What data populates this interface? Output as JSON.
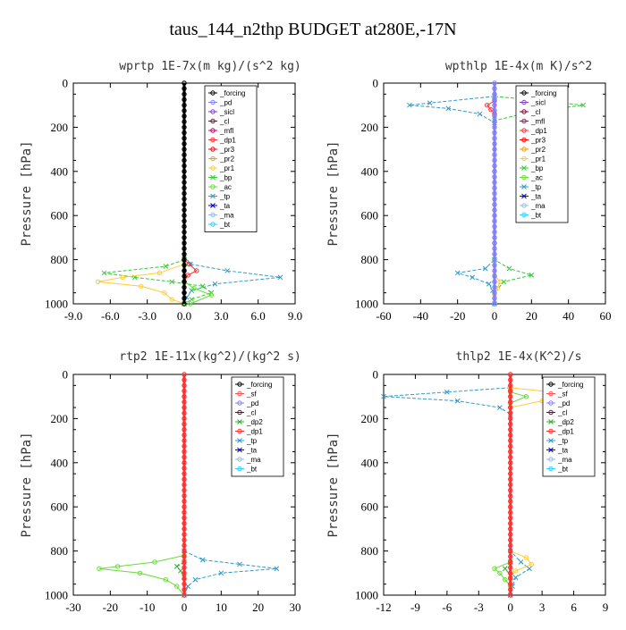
{
  "title": "taus_144_n2thp  BUDGET at280E,-17N",
  "colors": {
    "forcing": "#000000",
    "pd": "#8080ff",
    "sicl": "#8040c0",
    "cl": "#800040",
    "mfl": "#c00060",
    "dp1": "#ff3030",
    "pr3": "#ff0000",
    "pr2": "#ff9900",
    "pr1": "#ffcc33",
    "bp": "#33cc33",
    "ac": "#66dd33",
    "tp": "#3399cc",
    "ta": "#0000cc",
    "ma": "#99bbdd",
    "bt": "#33ccff",
    "sf": "#ff5050",
    "dp2": "#33aa33"
  },
  "chart_data": [
    {
      "type": "line",
      "title": "wprtp  1E-7x(m kg)/(s^2 kg)",
      "ylabel": "Pressure [hPa]",
      "xlim": [
        -9,
        9
      ],
      "ylim": [
        1000,
        0
      ],
      "xticks": [
        "-9.0",
        "-6.0",
        "-3.0",
        "0.0",
        "3.0",
        "6.0",
        "9.0"
      ],
      "xtick_values": [
        -9,
        -6,
        -3,
        0,
        3,
        6,
        9
      ],
      "yticks": [
        "0",
        "200",
        "400",
        "600",
        "800",
        "1000"
      ],
      "ytick_values": [
        0,
        200,
        400,
        600,
        800,
        1000
      ],
      "legend": [
        "_forcing",
        "_pd",
        "_sicl",
        "_cl",
        "_mfl",
        "_dp1",
        "_pr3",
        "_pr2",
        "_pr1",
        "_bp",
        "_ac",
        "_tp",
        "_ta",
        "_ma",
        "_bt"
      ],
      "series": [
        {
          "name": "_forcing",
          "color": "#000000",
          "marker": "o",
          "pressure": [
            0,
            800,
            850,
            900,
            950,
            1000
          ],
          "values": [
            0,
            0,
            0,
            0,
            0,
            0
          ]
        },
        {
          "name": "_tp",
          "color": "#3399cc",
          "marker": "x",
          "pressure": [
            780,
            820,
            850,
            880,
            910,
            940,
            970,
            1000
          ],
          "values": [
            0,
            0.5,
            3.5,
            7.8,
            2.5,
            0.6,
            0.2,
            0
          ]
        },
        {
          "name": "_bp",
          "color": "#33cc33",
          "marker": "x",
          "pressure": [
            800,
            830,
            860,
            880,
            900,
            920,
            950,
            980,
            1000
          ],
          "values": [
            0,
            -1.5,
            -6.5,
            -4,
            -1,
            1.5,
            2.2,
            0.6,
            0
          ]
        },
        {
          "name": "_pr1",
          "color": "#ffcc33",
          "marker": "o",
          "pressure": [
            820,
            860,
            880,
            900,
            920,
            950,
            980,
            1000
          ],
          "values": [
            0,
            -2,
            -5,
            -7,
            -3.5,
            -1.6,
            -1,
            0
          ]
        },
        {
          "name": "_ac",
          "color": "#66dd33",
          "marker": "o",
          "pressure": [
            900,
            930,
            960,
            1000
          ],
          "values": [
            0,
            0.8,
            2.2,
            0.5
          ]
        },
        {
          "name": "_dp1",
          "color": "#ff3030",
          "marker": "o",
          "pressure": [
            800,
            820,
            850,
            870,
            900
          ],
          "values": [
            0,
            0.4,
            1.0,
            0.3,
            0
          ]
        }
      ]
    },
    {
      "type": "line",
      "title": "wpthlp  1E-4x(m K)/s^2",
      "ylabel": "Pressure [hPa]",
      "xlim": [
        -60,
        60
      ],
      "ylim": [
        1000,
        0
      ],
      "xticks": [
        "-60",
        "-40",
        "-20",
        "0",
        "20",
        "40",
        "60"
      ],
      "xtick_values": [
        -60,
        -40,
        -20,
        0,
        20,
        40,
        60
      ],
      "yticks": [
        "0",
        "200",
        "400",
        "600",
        "800",
        "1000"
      ],
      "ytick_values": [
        0,
        200,
        400,
        600,
        800,
        1000
      ],
      "legend": [
        "_forcing",
        "_sicl",
        "_cl",
        "_mfl",
        "_dp1",
        "_pr3",
        "_pr2",
        "_pr1",
        "_bp",
        "_ac",
        "_tp",
        "_ta",
        "_ma",
        "_bt"
      ],
      "series": [
        {
          "name": "_forcing",
          "color": "#8080ff",
          "marker": "o",
          "pressure": [
            0,
            1000
          ],
          "values": [
            0,
            0
          ]
        },
        {
          "name": "_tp",
          "color": "#3399cc",
          "marker": "x",
          "pressure": [
            60,
            90,
            100,
            115,
            140,
            180,
            800,
            840,
            860,
            880,
            910,
            940,
            1000
          ],
          "values": [
            0,
            -35,
            -46,
            -25,
            -8,
            0,
            0,
            -5,
            -20,
            -12,
            -3,
            -1,
            0
          ]
        },
        {
          "name": "_bp",
          "color": "#33cc33",
          "marker": "x",
          "pressure": [
            60,
            80,
            100,
            130,
            170,
            800,
            840,
            870,
            900,
            950
          ],
          "values": [
            0,
            25,
            48,
            20,
            0,
            0,
            8,
            20,
            5,
            0
          ]
        },
        {
          "name": "_dp1",
          "color": "#ff3030",
          "marker": "o",
          "pressure": [
            80,
            100,
            120,
            140
          ],
          "values": [
            0,
            -4,
            -2,
            0
          ]
        },
        {
          "name": "_pr1",
          "color": "#ffcc33",
          "marker": "o",
          "pressure": [
            870,
            900,
            930,
            960
          ],
          "values": [
            0,
            3,
            1.5,
            0
          ]
        }
      ]
    },
    {
      "type": "line",
      "title": "rtp2  1E-11x(kg^2)/(kg^2 s)",
      "ylabel": "Pressure [hPa]",
      "xlim": [
        -30,
        30
      ],
      "ylim": [
        1000,
        0
      ],
      "xticks": [
        "-30",
        "-20",
        "-10",
        "0",
        "10",
        "20",
        "30"
      ],
      "xtick_values": [
        -30,
        -20,
        -10,
        0,
        10,
        20,
        30
      ],
      "yticks": [
        "0",
        "200",
        "400",
        "600",
        "800",
        "1000"
      ],
      "ytick_values": [
        0,
        200,
        400,
        600,
        800,
        1000
      ],
      "legend": [
        "_forcing",
        "_sf",
        "_pd",
        "_cl",
        "_dp2",
        "_dp1",
        "_tp",
        "_ta",
        "_ma",
        "_bt"
      ],
      "series": [
        {
          "name": "_forcing",
          "color": "#ff3030",
          "marker": "o",
          "pressure": [
            0,
            1000
          ],
          "values": [
            0,
            0
          ]
        },
        {
          "name": "_tp",
          "color": "#3399cc",
          "marker": "x",
          "pressure": [
            800,
            840,
            860,
            880,
            900,
            930,
            960,
            1000
          ],
          "values": [
            0,
            5,
            15,
            25,
            10,
            3,
            1,
            0
          ]
        },
        {
          "name": "_dp1",
          "color": "#66dd33",
          "marker": "o",
          "pressure": [
            820,
            850,
            870,
            880,
            900,
            930,
            960,
            1000
          ],
          "values": [
            0,
            -8,
            -18,
            -23,
            -12,
            -5,
            -2,
            0
          ]
        },
        {
          "name": "_dp2",
          "color": "#33aa33",
          "marker": "x",
          "pressure": [
            850,
            870,
            890,
            920
          ],
          "values": [
            0,
            -2,
            -1,
            0
          ]
        }
      ]
    },
    {
      "type": "line",
      "title": "thlp2  1E-4x(K^2)/s",
      "ylabel": "Pressure [hPa]",
      "xlim": [
        -12,
        9
      ],
      "ylim": [
        1000,
        0
      ],
      "xticks": [
        "-12",
        "-9",
        "-6",
        "-3",
        "0",
        "3",
        "6",
        "9"
      ],
      "xtick_values": [
        -12,
        -9,
        -6,
        -3,
        0,
        3,
        6,
        9
      ],
      "yticks": [
        "0",
        "200",
        "400",
        "600",
        "800",
        "1000"
      ],
      "ytick_values": [
        0,
        200,
        400,
        600,
        800,
        1000
      ],
      "legend": [
        "_forcing",
        "_sf",
        "_pd",
        "_cl",
        "_dp2",
        "_dp1",
        "_tp",
        "_ta",
        "_ma",
        "_bt"
      ],
      "series": [
        {
          "name": "_forcing",
          "color": "#ff3030",
          "marker": "o",
          "pressure": [
            0,
            1000
          ],
          "values": [
            0,
            0
          ]
        },
        {
          "name": "_tp",
          "color": "#3399cc",
          "marker": "x",
          "pressure": [
            60,
            80,
            100,
            120,
            150,
            180,
            800,
            850,
            880,
            920,
            960,
            1000
          ],
          "values": [
            0,
            -6,
            -12,
            -5,
            -1,
            0,
            0,
            1,
            1.8,
            0.5,
            0.2,
            0
          ]
        },
        {
          "name": "_pd",
          "color": "#ffcc33",
          "marker": "o",
          "pressure": [
            60,
            80,
            100,
            120,
            150,
            800,
            830,
            860,
            890,
            920
          ],
          "values": [
            0,
            4,
            7,
            3,
            0,
            0,
            1.5,
            2,
            0.5,
            0
          ]
        },
        {
          "name": "_dp1",
          "color": "#66dd33",
          "marker": "o",
          "pressure": [
            80,
            100,
            130,
            850,
            880,
            900,
            930,
            960
          ],
          "values": [
            0,
            1.5,
            0,
            0,
            -1.5,
            -1,
            -0.5,
            0
          ]
        },
        {
          "name": "_dp2",
          "color": "#33aa33",
          "marker": "x",
          "pressure": [
            850,
            880,
            910
          ],
          "values": [
            0,
            -0.5,
            0
          ]
        }
      ]
    }
  ]
}
